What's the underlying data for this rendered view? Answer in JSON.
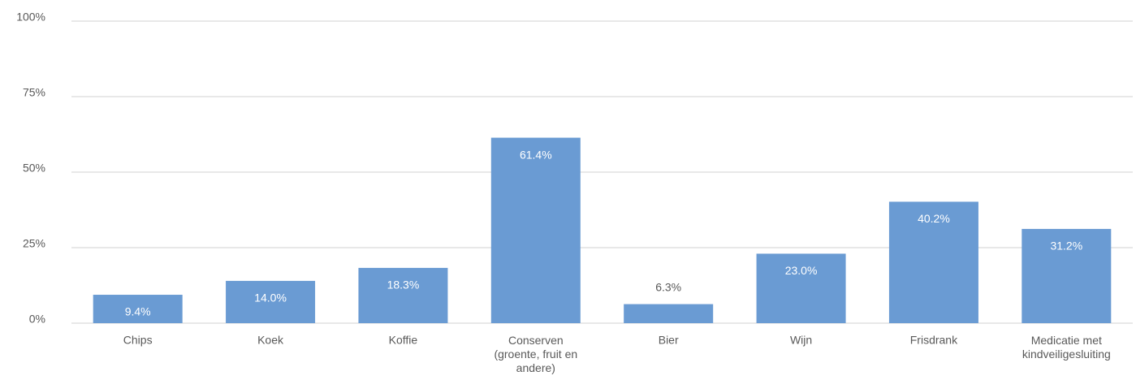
{
  "chart_data": {
    "type": "bar",
    "categories": [
      "Chips",
      "Koek",
      "Koffie",
      "Conserven (groente, fruit en andere)",
      "Bier",
      "Wijn",
      "Frisdrank",
      "Medicatie met kindveiligesluiting"
    ],
    "values": [
      9.4,
      14.0,
      18.3,
      61.4,
      6.3,
      23.0,
      40.2,
      31.2
    ],
    "value_labels": [
      "9.4%",
      "14.0%",
      "18.3%",
      "61.4%",
      "6.3%",
      "23.0%",
      "40.2%",
      "31.2%"
    ],
    "color": "#6a9bd3",
    "ylim": [
      0,
      100
    ],
    "yticks": [
      {
        "value": 0,
        "label": "0%"
      },
      {
        "value": 25,
        "label": "25%"
      },
      {
        "value": 50,
        "label": "50%"
      },
      {
        "value": 75,
        "label": "75%"
      },
      {
        "value": 100,
        "label": "100%"
      }
    ],
    "grid": true
  }
}
